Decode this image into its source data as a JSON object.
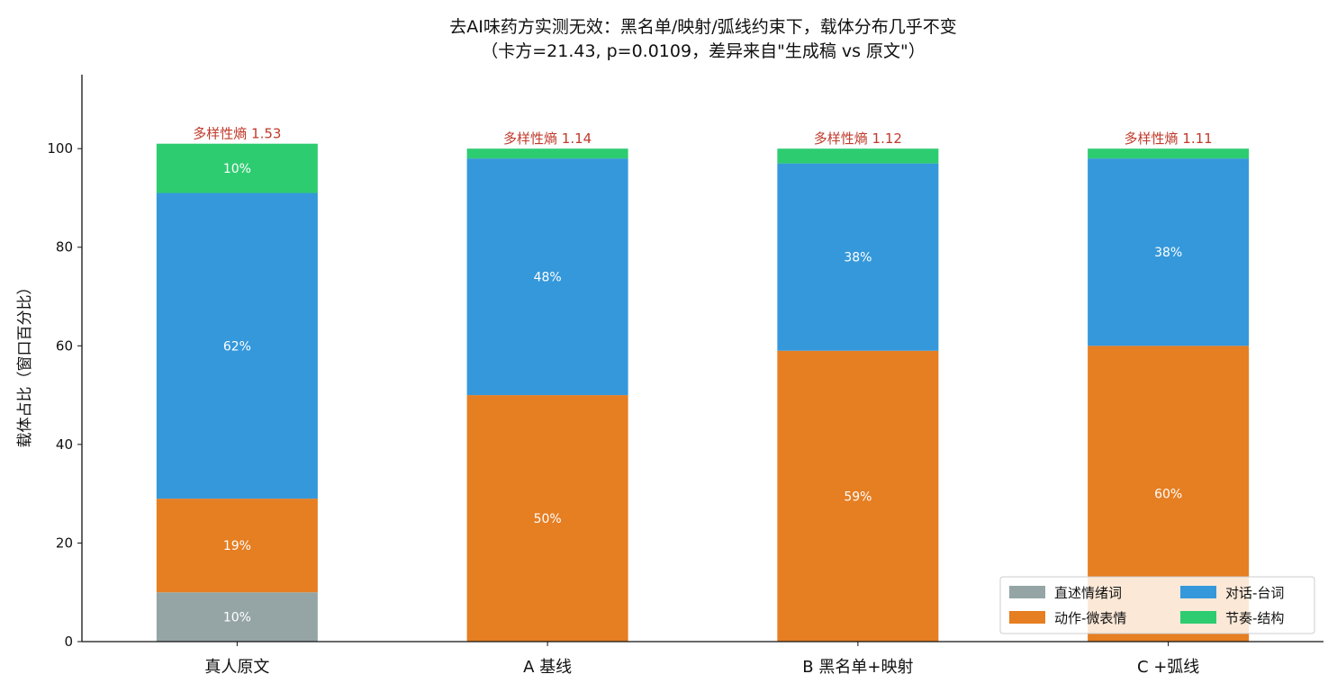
{
  "chart_data": {
    "type": "bar",
    "stacked": true,
    "title_line1": "去AI味药方实测无效：黑名单/映射/弧线约束下，载体分布几乎不变",
    "title_line2": "（卡方=21.43, p=0.0109，差异来自\"生成稿 vs 原文\"）",
    "ylabel": "载体占比（窗口百分比）",
    "xlabel": "",
    "ylim": [
      0,
      115
    ],
    "yticks": [
      0,
      20,
      40,
      60,
      80,
      100
    ],
    "categories": [
      "真人原文",
      "A 基线",
      "B 黑名单+映射",
      "C +弧线"
    ],
    "series": [
      {
        "name": "直述情绪词",
        "color": "#95a5a6",
        "values": [
          10,
          0,
          0,
          0
        ],
        "labels": [
          "10%",
          "",
          "",
          ""
        ]
      },
      {
        "name": "动作-微表情",
        "color": "#e67e22",
        "values": [
          19,
          50,
          59,
          60
        ],
        "labels": [
          "19%",
          "50%",
          "59%",
          "60%"
        ]
      },
      {
        "name": "对话-台词",
        "color": "#3498db",
        "values": [
          62,
          48,
          38,
          38
        ],
        "labels": [
          "62%",
          "48%",
          "38%",
          "38%"
        ]
      },
      {
        "name": "节奏-结构",
        "color": "#2ecc71",
        "values": [
          10,
          2,
          3,
          2
        ],
        "labels": [
          "10%",
          "",
          "",
          ""
        ]
      }
    ],
    "annotations": [
      "多样性熵 1.53",
      "多样性熵 1.14",
      "多样性熵 1.12",
      "多样性熵 1.11"
    ],
    "annotation_color": "#c0392b",
    "legend_position": "lower-right",
    "legend_columns": 2,
    "grid": false
  }
}
